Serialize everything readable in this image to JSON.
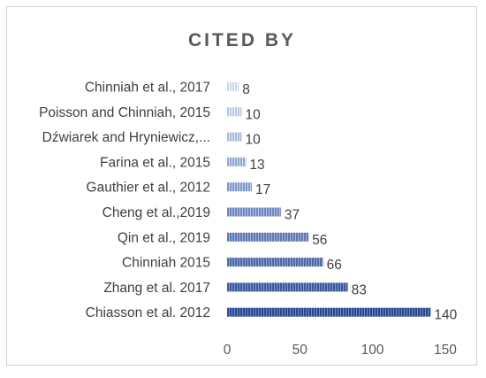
{
  "chart_data": {
    "type": "bar",
    "orientation": "horizontal",
    "title": "CITED BY",
    "xlabel": "",
    "ylabel": "",
    "categories": [
      "Chiasson et al. 2012",
      "Zhang et al. 2017",
      "Chinniah 2015",
      "Qin et al., 2019",
      "Cheng et al.,2019",
      "Gauthier et al., 2012",
      "Farina et al., 2015",
      "Dźwiarek and Hryniewicz,...",
      "Poisson and Chinniah, 2015",
      "Chinniah et al., 2017"
    ],
    "values": [
      140,
      83,
      66,
      56,
      37,
      17,
      13,
      10,
      10,
      8
    ],
    "xlim": [
      0,
      150
    ],
    "x_ticks": [
      0,
      50,
      100,
      150
    ],
    "grid": false,
    "legend": "none",
    "colors": {
      "bar_light": "#c9d6ee",
      "bar_dark": "#2e4a8c",
      "text": "#404040",
      "title": "#595959",
      "border": "#d0d0d0"
    }
  }
}
